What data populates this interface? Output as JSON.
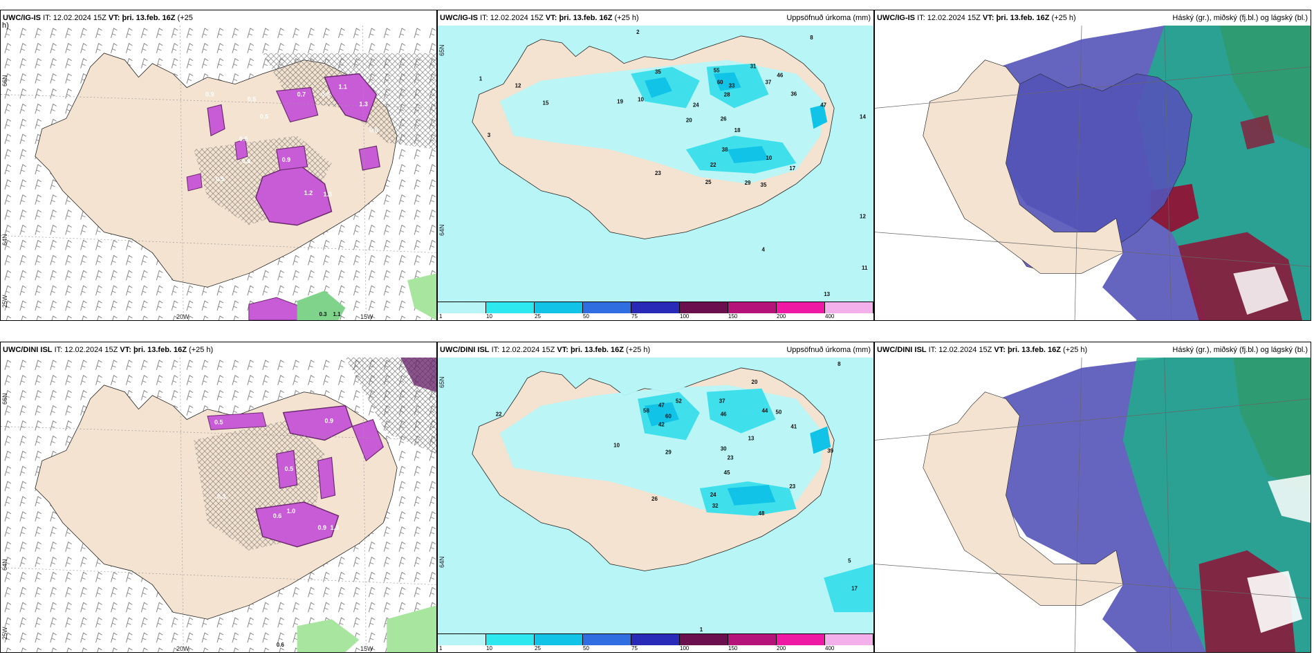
{
  "colors": {
    "land": "#f3e3d0",
    "sea_precip_low": "#b7f5f7",
    "precip_mid": "#3fe0ec",
    "precip_high": "#11c3e6",
    "snow_purple": "#c85bd6",
    "snow_dark": "#6b2a6e",
    "green": "#7fd38a",
    "cloud_high": "#5454b8",
    "cloud_mid": "#1db08a",
    "cloud_low": "#8a1b3a"
  },
  "panels": [
    {
      "id": "top-left",
      "model": "UWC/IG-IS",
      "init_label": "IT:",
      "init": "12.02.2024 15Z",
      "valid_label": "VT:",
      "valid": "þri. 13.feb. 16Z",
      "lead": "(+25",
      "lead2": "h)",
      "right_title": "",
      "axis": {
        "lon": [
          "20W",
          "15W"
        ],
        "lat": [
          "66N",
          "64N",
          "25W"
        ]
      },
      "labels": [
        "0.9",
        "0.5",
        "0.5",
        "1.1",
        "0.7",
        "0.5",
        "1.3",
        "0.8",
        "0.6",
        "0.9",
        "1.2",
        "1.3",
        "0.5",
        "0.6",
        "0.3",
        "1.1"
      ]
    },
    {
      "id": "top-middle",
      "model": "UWC/IG-IS",
      "init_label": "IT:",
      "init": "12.02.2024 15Z",
      "valid_label": "VT:",
      "valid": "þri. 13.feb. 16Z",
      "lead": "(+25 h)",
      "right_title": "Uppsöfnuð úrkoma (mm)",
      "axis": {
        "lat": [
          "65N",
          "64N"
        ]
      },
      "labels": [
        "2",
        "3",
        "8",
        "1",
        "12",
        "15",
        "10",
        "35",
        "55",
        "31",
        "37",
        "46",
        "60",
        "33",
        "28",
        "19",
        "24",
        "20",
        "26",
        "18",
        "36",
        "47",
        "14",
        "38",
        "22",
        "23",
        "29",
        "35",
        "25",
        "17",
        "10",
        "4",
        "12",
        "13",
        "11"
      ]
    },
    {
      "id": "top-right",
      "model": "UWC/IG-IS",
      "init_label": "IT:",
      "init": "12.02.2024 15Z",
      "valid_label": "VT:",
      "valid": "þri. 13.feb. 16Z",
      "lead": "(+25 h)",
      "right_title": "Háský (gr.), miðský (fj.bl.) og lágský (bl.)"
    },
    {
      "id": "bottom-left",
      "model": "UWC/DINI ISL",
      "init_label": "IT:",
      "init": "12.02.2024 15Z",
      "valid_label": "VT:",
      "valid": "þri. 13.feb. 16Z",
      "lead": "(+25 h)",
      "right_title": "",
      "axis": {
        "lon": [
          "20W",
          "15W"
        ],
        "lat": [
          "66N",
          "64N",
          "25W"
        ]
      },
      "labels": [
        "0.5",
        "0.9",
        "1.0",
        "0.6",
        "0.9",
        "1.3",
        "0.5",
        "0.3",
        "0.6"
      ]
    },
    {
      "id": "bottom-middle",
      "model": "UWC/DINI ISL",
      "init_label": "IT:",
      "init": "12.02.2024 15Z",
      "valid_label": "VT:",
      "valid": "þri. 13.feb. 16Z",
      "lead": "(+25 h)",
      "right_title": "Uppsöfnuð úrkoma (mm)",
      "axis": {
        "lat": [
          "65N",
          "64N"
        ]
      },
      "labels": [
        "8",
        "20",
        "22",
        "52",
        "37",
        "44",
        "50",
        "58",
        "47",
        "42",
        "60",
        "46",
        "29",
        "30",
        "23",
        "13",
        "41",
        "39",
        "24",
        "32",
        "26",
        "45",
        "48",
        "23",
        "17",
        "10",
        "5",
        "1"
      ]
    },
    {
      "id": "bottom-right",
      "model": "UWC/DINI ISL",
      "init_label": "IT:",
      "init": "12.02.2024 15Z",
      "valid_label": "VT:",
      "valid": "þri. 13.feb. 16Z",
      "lead": "(+25 h)",
      "right_title": "Háský (gr.), miðský (fj.bl.) og lágský (bl.)"
    }
  ],
  "colorbar": {
    "ticks": [
      "1",
      "10",
      "25",
      "50",
      "75",
      "100",
      "150",
      "200",
      "400"
    ],
    "colors": [
      "#b7f5f7",
      "#2ee8f0",
      "#11c3e6",
      "#2f6de0",
      "#2a2ab8",
      "#6b0f4e",
      "#b5137a",
      "#ee1aa4",
      "#f3b0ea"
    ]
  }
}
